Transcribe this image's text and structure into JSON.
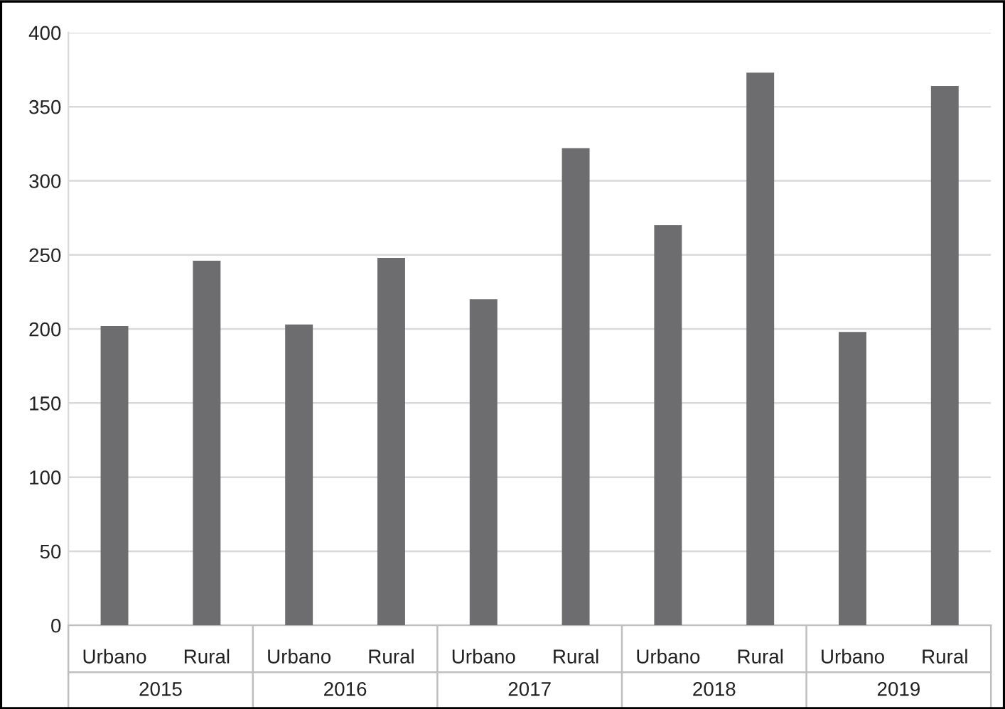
{
  "chart_data": {
    "type": "bar",
    "categories": [
      "Urbano",
      "Rural",
      "Urbano",
      "Rural",
      "Urbano",
      "Rural",
      "Urbano",
      "Rural",
      "Urbano",
      "Rural"
    ],
    "values": [
      202,
      246,
      203,
      248,
      220,
      322,
      270,
      373,
      198,
      364
    ],
    "color": "#6d6d70",
    "annotations": [
      "2015",
      "2016",
      "2017",
      "2018",
      "2019"
    ],
    "ylim": [
      0,
      400
    ],
    "yticks": [
      0,
      50,
      100,
      150,
      200,
      250,
      300,
      350,
      400
    ],
    "grid": "y",
    "legend": false
  }
}
